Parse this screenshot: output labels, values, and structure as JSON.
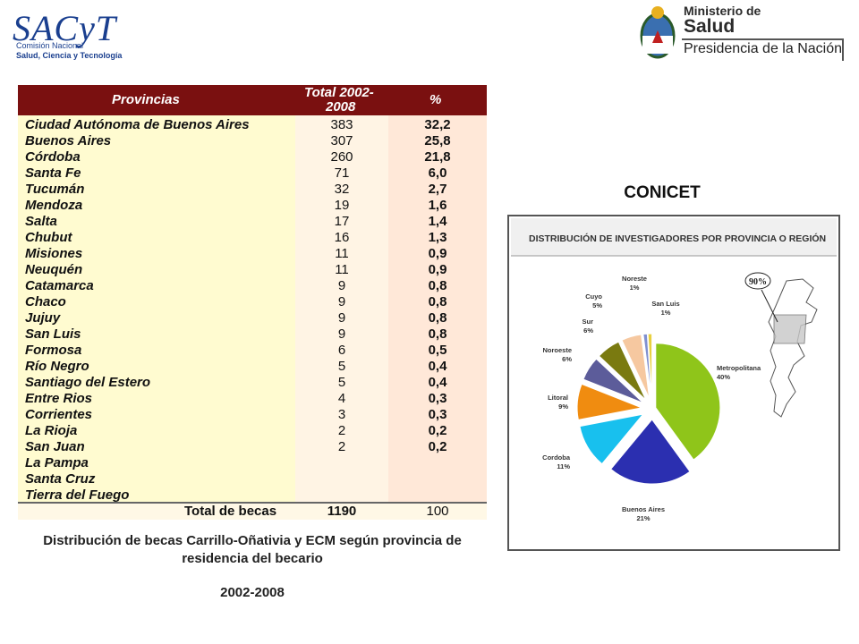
{
  "logos": {
    "sacyt": {
      "mark": "SACyT",
      "line1": "Comisión Nacional",
      "line2": "Salud, Ciencia y Tecnología"
    },
    "ministerio": {
      "line1": "Ministerio de",
      "line2": "Salud",
      "line3": "Presidencia de la Nación"
    }
  },
  "table": {
    "headers": {
      "provincias": "Provincias",
      "total_1": "Total 2002-",
      "total_2": "2008",
      "pct": "%"
    },
    "rows": [
      {
        "provincia": "Ciudad Autónoma de Buenos Aires",
        "total": "383",
        "pct": "32,2"
      },
      {
        "provincia": "Buenos Aires",
        "total": "307",
        "pct": "25,8"
      },
      {
        "provincia": "Córdoba",
        "total": "260",
        "pct": "21,8"
      },
      {
        "provincia": "Santa Fe",
        "total": "71",
        "pct": "6,0"
      },
      {
        "provincia": "Tucumán",
        "total": "32",
        "pct": "2,7"
      },
      {
        "provincia": "Mendoza",
        "total": "19",
        "pct": "1,6"
      },
      {
        "provincia": "Salta",
        "total": "17",
        "pct": "1,4"
      },
      {
        "provincia": "Chubut",
        "total": "16",
        "pct": "1,3"
      },
      {
        "provincia": "Misiones",
        "total": "11",
        "pct": "0,9"
      },
      {
        "provincia": "Neuquén",
        "total": "11",
        "pct": "0,9"
      },
      {
        "provincia": "Catamarca",
        "total": "9",
        "pct": "0,8"
      },
      {
        "provincia": "Chaco",
        "total": "9",
        "pct": "0,8"
      },
      {
        "provincia": "Jujuy",
        "total": "9",
        "pct": "0,8"
      },
      {
        "provincia": "San Luis",
        "total": "9",
        "pct": "0,8"
      },
      {
        "provincia": "Formosa",
        "total": "6",
        "pct": "0,5"
      },
      {
        "provincia": "Río Negro",
        "total": "5",
        "pct": "0,4"
      },
      {
        "provincia": "Santiago del Estero",
        "total": "5",
        "pct": "0,4"
      },
      {
        "provincia": "Entre Rios",
        "total": "4",
        "pct": "0,3"
      },
      {
        "provincia": "Corrientes",
        "total": "3",
        "pct": "0,3"
      },
      {
        "provincia": "La Rioja",
        "total": "2",
        "pct": "0,2"
      },
      {
        "provincia": "San Juan",
        "total": "2",
        "pct": "0,2"
      },
      {
        "provincia": "La Pampa",
        "total": "",
        "pct": ""
      },
      {
        "provincia": "Santa Cruz",
        "total": "",
        "pct": ""
      },
      {
        "provincia": "Tierra del Fuego",
        "total": "",
        "pct": ""
      }
    ],
    "total_row": {
      "label": "Total de becas",
      "total": "1190",
      "pct": "100"
    }
  },
  "caption": {
    "line": "Distribución de  becas Carrillo-Oñativia y ECM según provincia de residencia del becario",
    "year": "2002-2008"
  },
  "conicet_title": "CONICET",
  "chart_data": {
    "type": "pie",
    "title": "DISTRIBUCIÓN DE INVESTIGADORES POR PROVINCIA O REGIÓN",
    "slices": [
      {
        "label": "Metropolitana",
        "pct_label": "40%",
        "value": 40,
        "color": "#8fc51a"
      },
      {
        "label": "Buenos Aires",
        "pct_label": "21%",
        "value": 21,
        "color": "#2b2fb0"
      },
      {
        "label": "Cordoba",
        "pct_label": "11%",
        "value": 11,
        "color": "#18c0ee"
      },
      {
        "label": "Litoral",
        "pct_label": "9%",
        "value": 9,
        "color": "#f08c10"
      },
      {
        "label": "Noroeste",
        "pct_label": "6%",
        "value": 6,
        "color": "#5c5c9a"
      },
      {
        "label": "Sur",
        "pct_label": "6%",
        "value": 6,
        "color": "#7a7a10"
      },
      {
        "label": "Cuyo",
        "pct_label": "5%",
        "value": 5,
        "color": "#f6c8a0"
      },
      {
        "label": "Noreste",
        "pct_label": "1%",
        "value": 1,
        "color": "#8090d0"
      },
      {
        "label": "San Luis",
        "pct_label": "1%",
        "value": 1,
        "color": "#e8d040"
      }
    ],
    "map_badge": "90%"
  }
}
